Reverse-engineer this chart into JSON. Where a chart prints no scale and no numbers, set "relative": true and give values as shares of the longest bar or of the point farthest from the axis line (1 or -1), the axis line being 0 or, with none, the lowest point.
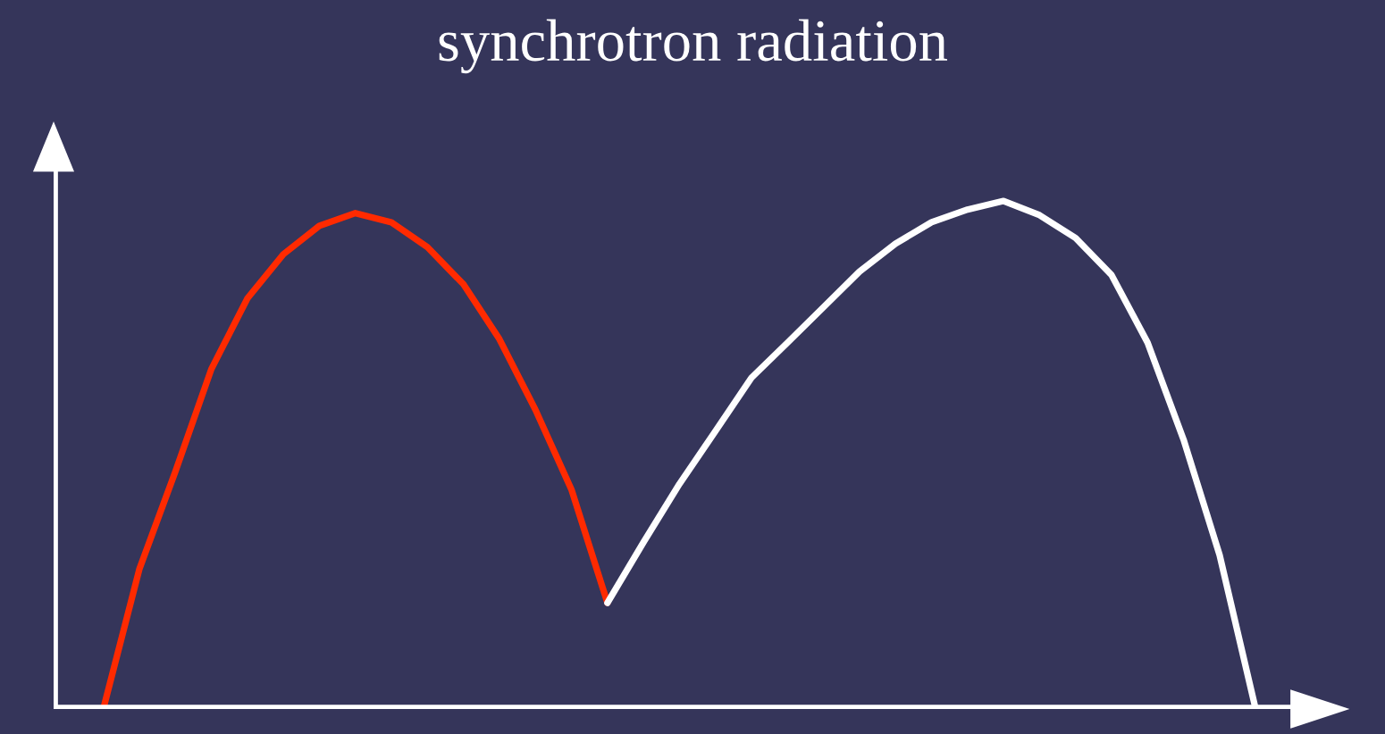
{
  "chart_data": {
    "type": "line",
    "title": "synchrotron radiation",
    "relative": true,
    "categories": [
      null,
      null,
      null,
      null,
      null,
      null,
      null,
      null,
      null,
      null,
      null,
      null,
      null,
      null,
      null,
      null,
      null,
      null,
      null,
      null,
      null,
      null,
      null,
      null,
      null,
      null,
      null,
      null,
      null,
      null,
      null,
      null,
      null
    ],
    "series": [
      {
        "color": "#ff2a00",
        "values": [
          0,
          0.275,
          0.467,
          0.669,
          0.808,
          0.895,
          0.951,
          0.976,
          0.958,
          0.909,
          0.836,
          0.728,
          0.589,
          0.432,
          0.209,
          null,
          null,
          null,
          null,
          null,
          null,
          null,
          null,
          null,
          null,
          null,
          null,
          null,
          null,
          null,
          null,
          null,
          null
        ]
      },
      {
        "color": "#ffffff",
        "values": [
          null,
          null,
          null,
          null,
          null,
          null,
          null,
          null,
          null,
          null,
          null,
          null,
          null,
          null,
          0.209,
          0.328,
          0.443,
          0.547,
          0.652,
          0.721,
          0.791,
          0.861,
          0.916,
          0.958,
          0.983,
          1,
          0.972,
          0.927,
          0.854,
          0.721,
          0.53,
          0.303,
          0
        ]
      }
    ],
    "legend": false,
    "marker": "none",
    "line_style": "solid"
  }
}
